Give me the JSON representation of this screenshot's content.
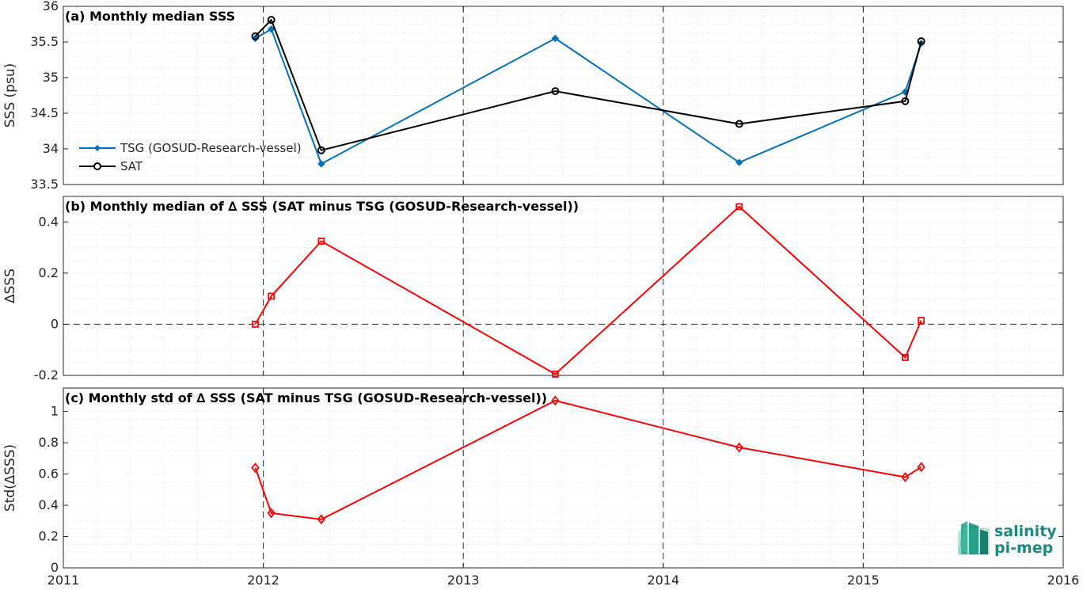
{
  "chart_data": [
    {
      "type": "line",
      "title": "(a) Monthly median SSS",
      "ylabel": "SSS (psu)",
      "xlim": [
        2011,
        2016
      ],
      "ylim": [
        33.5,
        36
      ],
      "xticks": [
        2011,
        2012,
        2013,
        2014,
        2015,
        2016
      ],
      "yticks": [
        33.5,
        34,
        34.5,
        35,
        35.5,
        36
      ],
      "ytick_labels": [
        "33.5",
        "34",
        "34.5",
        "35",
        "35.5",
        "36"
      ],
      "grid": "dotted major and minor",
      "legend_position": "left",
      "series": [
        {
          "name": "TSG (GOSUD-Research-vessel)",
          "color": "#0072bd",
          "marker": "filled-diamond",
          "x": [
            2011.96,
            2012.04,
            2012.29,
            2013.46,
            2014.38,
            2015.21,
            2015.29
          ],
          "y": [
            35.55,
            35.68,
            33.79,
            35.55,
            33.81,
            34.8,
            35.48
          ]
        },
        {
          "name": "SAT",
          "color": "#000000",
          "marker": "open-circle",
          "x": [
            2011.96,
            2012.04,
            2012.29,
            2013.46,
            2014.38,
            2015.21,
            2015.29
          ],
          "y": [
            35.58,
            35.81,
            33.98,
            34.81,
            34.35,
            34.67,
            35.51
          ]
        }
      ]
    },
    {
      "type": "line",
      "title": "(b) Monthly median of ∆ SSS (SAT minus TSG (GOSUD-Research-vessel))",
      "ylabel": "∆SSS",
      "xlim": [
        2011,
        2016
      ],
      "ylim": [
        -0.2,
        0.5
      ],
      "xticks": [
        2011,
        2012,
        2013,
        2014,
        2015,
        2016
      ],
      "yticks": [
        -0.2,
        0,
        0.2,
        0.4
      ],
      "ytick_labels": [
        "-0.2",
        "0",
        "0.2",
        "0.4"
      ],
      "zero_line": true,
      "series": [
        {
          "color": "#ff0000",
          "marker": "open-square",
          "x": [
            2011.96,
            2012.04,
            2012.29,
            2013.46,
            2014.38,
            2015.21,
            2015.29
          ],
          "y": [
            0.0,
            0.11,
            0.325,
            -0.195,
            0.46,
            -0.13,
            0.015
          ]
        }
      ]
    },
    {
      "type": "line",
      "title": "(c) Monthly std of ∆ SSS (SAT minus TSG (GOSUD-Research-vessel))",
      "ylabel": "Std(∆SSS)",
      "xlim": [
        2011,
        2016
      ],
      "ylim": [
        0,
        1.15
      ],
      "xticks": [
        2011,
        2012,
        2013,
        2014,
        2015,
        2016
      ],
      "xtick_labels": [
        "2011",
        "2012",
        "2013",
        "2014",
        "2015",
        "2016"
      ],
      "yticks": [
        0,
        0.2,
        0.4,
        0.6,
        0.8,
        1
      ],
      "ytick_labels": [
        "0",
        "0.2",
        "0.4",
        "0.6",
        "0.8",
        "1"
      ],
      "series": [
        {
          "color": "#ff0000",
          "marker": "open-diamond",
          "x": [
            2011.96,
            2012.04,
            2012.29,
            2013.46,
            2014.38,
            2015.21,
            2015.29
          ],
          "y": [
            0.64,
            0.35,
            0.31,
            1.07,
            0.77,
            0.58,
            0.645
          ]
        }
      ]
    }
  ],
  "year_markers": [
    2012,
    2013,
    2014,
    2015
  ],
  "logo": {
    "line1": "salinity",
    "line2": "pi-mep",
    "color": "#1a8a7e"
  }
}
